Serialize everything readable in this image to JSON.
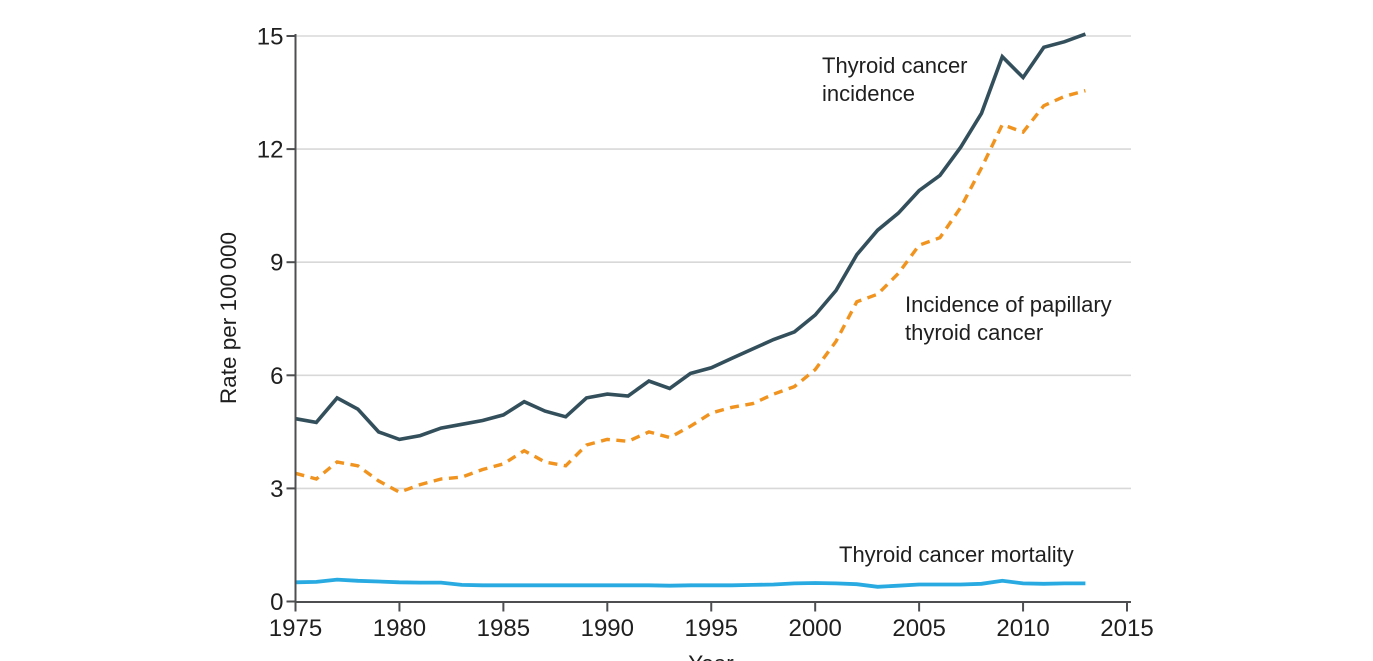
{
  "figure": {
    "annotations": {
      "incidence": {
        "line1": "Thyroid cancer",
        "line2": "incidence"
      },
      "papillary": {
        "line1": "Incidence of papillary",
        "line2": "thyroid cancer"
      },
      "mortality": {
        "line1": "Thyroid cancer mortality"
      }
    },
    "text_color": "#1f1f1f",
    "axis_color": "#4d4e50",
    "grid_color": "#d8d8d8"
  },
  "chart_data": {
    "type": "line",
    "title": "",
    "xlabel": "Year",
    "ylabel": "Rate per 100 000",
    "xlim": [
      1975,
      2015
    ],
    "ylim": [
      0,
      15
    ],
    "xticks": [
      1975,
      1980,
      1985,
      1990,
      1995,
      2000,
      2005,
      2010,
      2015
    ],
    "yticks": [
      0,
      3,
      6,
      9,
      12,
      15
    ],
    "grid": "horizontal-only",
    "legend": "direct-labels",
    "x": [
      1975,
      1976,
      1977,
      1978,
      1979,
      1980,
      1981,
      1982,
      1983,
      1984,
      1985,
      1986,
      1987,
      1988,
      1989,
      1990,
      1991,
      1992,
      1993,
      1994,
      1995,
      1996,
      1997,
      1998,
      1999,
      2000,
      2001,
      2002,
      2003,
      2004,
      2005,
      2006,
      2007,
      2008,
      2009,
      2010,
      2011,
      2012,
      2013
    ],
    "series": [
      {
        "name": "Thyroid cancer incidence",
        "color": "#334f5c",
        "style": "solid",
        "width": 3.6,
        "values": [
          4.85,
          4.75,
          5.4,
          5.1,
          4.5,
          4.3,
          4.4,
          4.6,
          4.7,
          4.8,
          4.95,
          5.3,
          5.05,
          4.9,
          5.4,
          5.5,
          5.45,
          5.85,
          5.65,
          6.05,
          6.2,
          6.45,
          6.7,
          6.95,
          7.15,
          7.6,
          8.25,
          9.2,
          9.85,
          10.3,
          10.9,
          11.3,
          12.05,
          12.95,
          14.45,
          13.9,
          14.7,
          14.85,
          15.05
        ]
      },
      {
        "name": "Incidence of papillary thyroid cancer",
        "color": "#f0941f",
        "style": "dashed",
        "width": 3.4,
        "values": [
          3.4,
          3.25,
          3.7,
          3.6,
          3.2,
          2.9,
          3.1,
          3.25,
          3.3,
          3.5,
          3.65,
          4.0,
          3.7,
          3.6,
          4.15,
          4.3,
          4.25,
          4.5,
          4.35,
          4.65,
          5.0,
          5.15,
          5.25,
          5.5,
          5.7,
          6.15,
          6.9,
          7.95,
          8.15,
          8.7,
          9.45,
          9.65,
          10.45,
          11.5,
          12.65,
          12.45,
          13.15,
          13.4,
          13.55
        ]
      },
      {
        "name": "Thyroid cancer mortality",
        "color": "#29abe2",
        "style": "solid",
        "width": 3.8,
        "values": [
          0.51,
          0.52,
          0.58,
          0.55,
          0.53,
          0.51,
          0.5,
          0.5,
          0.44,
          0.43,
          0.43,
          0.43,
          0.43,
          0.43,
          0.43,
          0.43,
          0.43,
          0.43,
          0.42,
          0.43,
          0.43,
          0.43,
          0.44,
          0.45,
          0.48,
          0.49,
          0.48,
          0.46,
          0.39,
          0.42,
          0.45,
          0.45,
          0.45,
          0.47,
          0.55,
          0.48,
          0.47,
          0.48,
          0.48
        ]
      }
    ]
  }
}
